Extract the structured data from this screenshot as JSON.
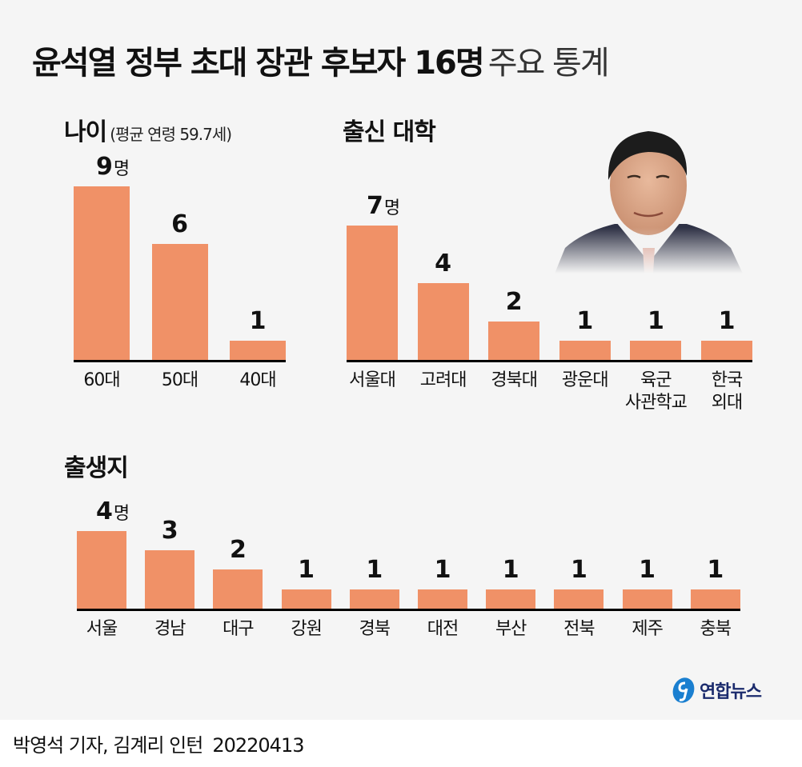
{
  "title": {
    "bold": "윤석열 정부 초대 장관 후보자 16명",
    "light": "주요 통계"
  },
  "bar_color": "#F09167",
  "sections": {
    "age": {
      "title": "나이",
      "subtitle": "(평균 연령 59.7세)"
    },
    "university": {
      "title": "출신 대학"
    },
    "birthplace": {
      "title": "출생지"
    }
  },
  "unit": "명",
  "chart_data": [
    {
      "type": "bar",
      "title": "나이 (평균 연령 59.7세)",
      "categories": [
        "60대",
        "50대",
        "40대"
      ],
      "values": [
        9,
        6,
        1
      ],
      "value_labels": [
        "9",
        "6",
        "1"
      ],
      "unit": "명"
    },
    {
      "type": "bar",
      "title": "출신 대학",
      "categories": [
        "서울대",
        "고려대",
        "경북대",
        "광운대",
        "육군 사관학교",
        "한국 외대"
      ],
      "category_lines": [
        [
          "서울대"
        ],
        [
          "고려대"
        ],
        [
          "경북대"
        ],
        [
          "광운대"
        ],
        [
          "육군",
          "사관학교"
        ],
        [
          "한국",
          "외대"
        ]
      ],
      "values": [
        7,
        4,
        2,
        1,
        1,
        1
      ],
      "value_labels": [
        "7",
        "4",
        "2",
        "1",
        "1",
        "1"
      ],
      "unit": "명"
    },
    {
      "type": "bar",
      "title": "출생지",
      "categories": [
        "서울",
        "경남",
        "대구",
        "강원",
        "경북",
        "대전",
        "부산",
        "전북",
        "제주",
        "충북"
      ],
      "values": [
        4,
        3,
        2,
        1,
        1,
        1,
        1,
        1,
        1,
        1
      ],
      "value_labels": [
        "4",
        "3",
        "2",
        "1",
        "1",
        "1",
        "1",
        "1",
        "1",
        "1"
      ],
      "unit": "명"
    }
  ],
  "photo": {
    "alt": "윤석열 당선인 사진"
  },
  "logo": {
    "text": "연합뉴스"
  },
  "footer": {
    "byline": "박영석 기자, 김계리 인턴",
    "date": "20220413"
  }
}
